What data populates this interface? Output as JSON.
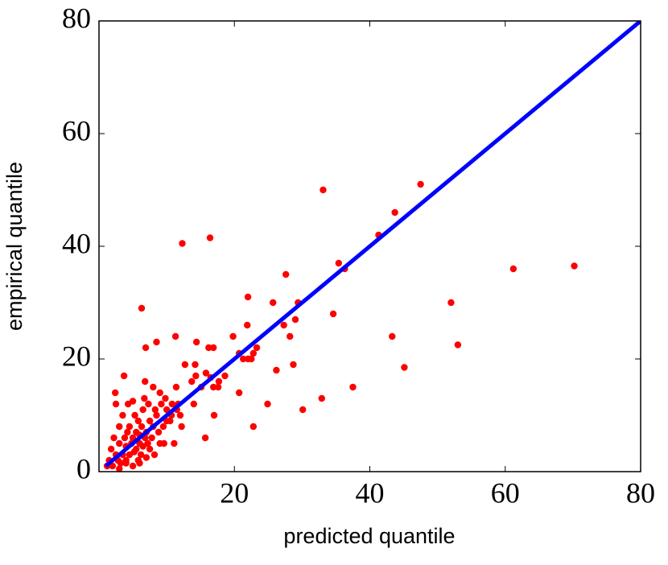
{
  "chart_data": {
    "type": "scatter",
    "x_label": "predicted quantile",
    "y_label": "empirical quantile",
    "xlim": [
      0,
      80
    ],
    "ylim": [
      0,
      80
    ],
    "xticks": [
      20,
      40,
      60,
      80
    ],
    "yticks": [
      0,
      20,
      40,
      60,
      80
    ],
    "points": {
      "color": "#ff0000",
      "x": [
        33.1,
        47.5,
        43.7,
        41.3,
        12.3,
        16.4,
        35.4,
        36.3,
        27.6,
        61.2,
        70.2,
        52,
        53,
        43.3,
        45.1,
        34.6,
        29.4,
        25.7,
        22,
        29,
        27.3,
        28.2,
        21.9,
        6.3,
        11.3,
        19.8,
        6.9,
        8.5,
        14.4,
        16.2,
        16.9,
        23.3,
        22.8,
        20.7,
        21.3,
        22,
        22.5,
        28.7,
        26.2,
        37.5,
        32.9,
        30.1,
        24.9,
        20.7,
        22.8,
        15.7,
        17,
        14.2,
        12.7,
        18.6,
        17.7,
        16.9,
        15.1,
        13.7,
        14.3,
        15.8,
        16.5,
        17.6,
        14,
        12.2,
        11.7,
        10.7,
        9.8,
        9,
        8.3,
        6.8,
        3.7,
        2.4,
        11.4,
        10,
        9.6,
        11.1,
        1.5,
        2,
        2.5,
        1.8,
        2.8,
        3,
        3.2,
        3.5,
        3.8,
        4,
        4,
        4.2,
        4.5,
        4.5,
        4.8,
        5,
        5,
        5.2,
        5.3,
        5.5,
        5.5,
        5.8,
        5.8,
        6,
        6,
        6.2,
        6.3,
        6.5,
        6.5,
        6.8,
        7,
        7,
        7.2,
        7.5,
        7.5,
        7.8,
        8,
        8.2,
        8.5,
        8.8,
        9,
        9.2,
        9.5,
        10,
        10.5,
        10.8,
        11.5,
        12,
        3,
        2.2,
        2.5,
        3.5,
        4.3,
        5,
        6.7,
        7.3,
        8,
        4,
        3,
        6,
        1.2
      ],
      "y": [
        50,
        51,
        46,
        42,
        40.5,
        41.5,
        37,
        36,
        35,
        36,
        36.5,
        30,
        22.5,
        24,
        18.5,
        28,
        30,
        30,
        31,
        27,
        26,
        24,
        26,
        29,
        24,
        24,
        22,
        23,
        23,
        22,
        22,
        22,
        21,
        21,
        20,
        20,
        20,
        19,
        18,
        15,
        13,
        11,
        12,
        14,
        8,
        6,
        10,
        19,
        19,
        17,
        16,
        15,
        15,
        16,
        17,
        17.5,
        16.7,
        15,
        12,
        8,
        12,
        10,
        13,
        14,
        11,
        16,
        17,
        14,
        15,
        9,
        5,
        5,
        2,
        1,
        3,
        4,
        2,
        5,
        1.5,
        3,
        6,
        2,
        4.5,
        7,
        3,
        8,
        5,
        1,
        6,
        3.5,
        10,
        4,
        7,
        2,
        9,
        5,
        6.5,
        3,
        8,
        4.5,
        11,
        6,
        2.5,
        7,
        5,
        9,
        4,
        6,
        8,
        3,
        10,
        7,
        5,
        12,
        8,
        11,
        9,
        12,
        11,
        10,
        8,
        6,
        12,
        10,
        12,
        12.5,
        13,
        12,
        15,
        1.5,
        0.5,
        1.5,
        1
      ]
    },
    "reference_line": {
      "color": "#0000ff",
      "x": [
        1,
        80
      ],
      "y": [
        1,
        80
      ]
    }
  }
}
